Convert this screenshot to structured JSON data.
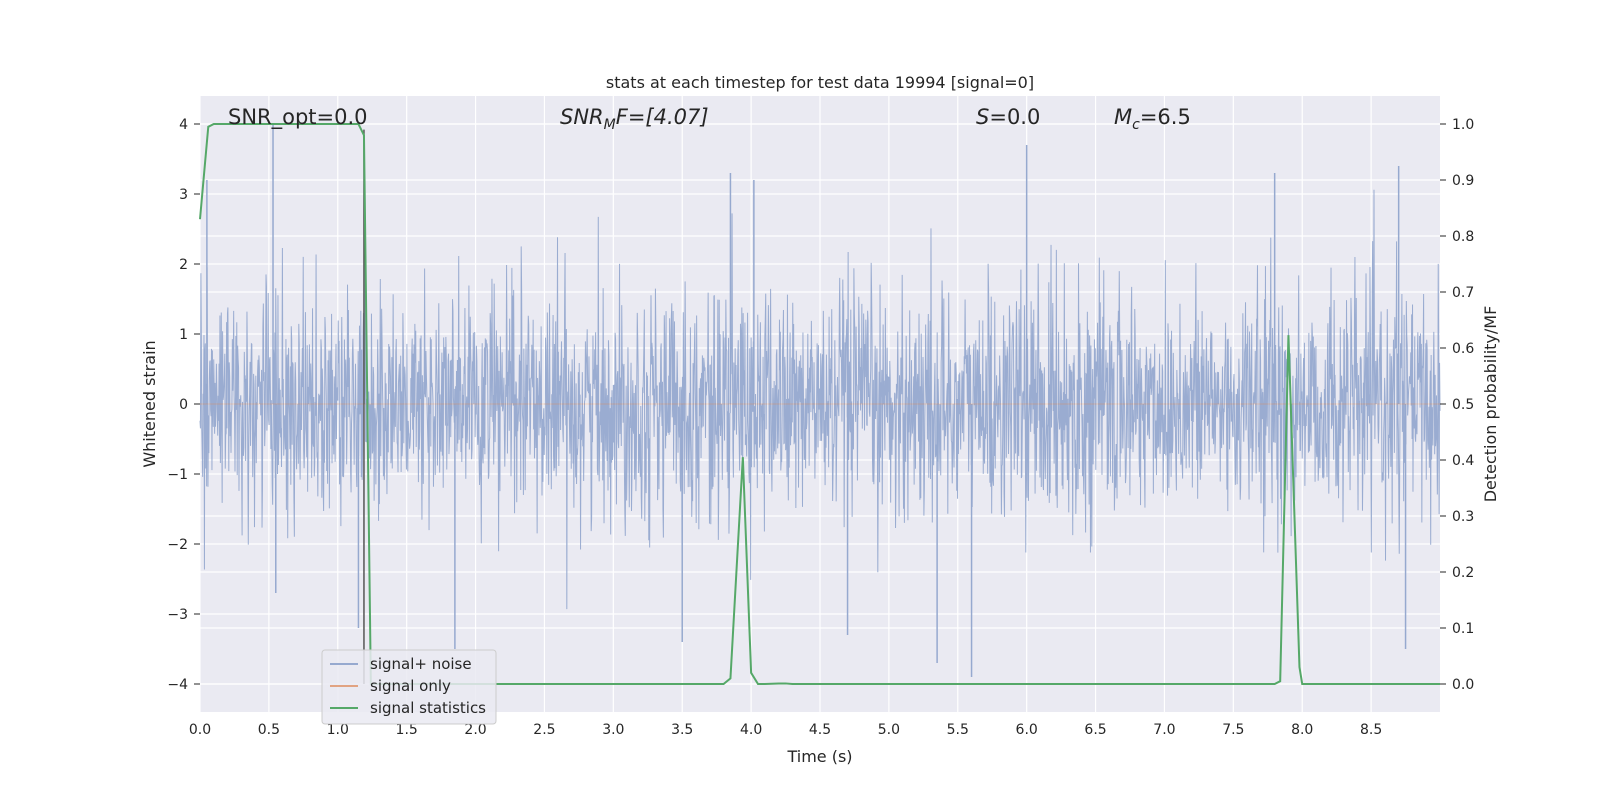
{
  "chart_data": {
    "type": "line",
    "title": "stats at each timestep for test data 19994 [signal=0]",
    "xlabel": "Time (s)",
    "ylabel": "Whitened strain",
    "y2label": "Detection probability/MF",
    "xlim": [
      0.0,
      9.0
    ],
    "ylim": [
      -4.4,
      4.4
    ],
    "y2lim": [
      -0.05,
      1.05
    ],
    "xticks": [
      "0.0",
      "0.5",
      "1.0",
      "1.5",
      "2.0",
      "2.5",
      "3.0",
      "3.5",
      "4.0",
      "4.5",
      "5.0",
      "5.5",
      "6.0",
      "6.5",
      "7.0",
      "7.5",
      "8.0",
      "8.5"
    ],
    "yticks": [
      "−4",
      "−3",
      "−2",
      "−1",
      "0",
      "1",
      "2",
      "3",
      "4"
    ],
    "y2ticks": [
      "0.0",
      "0.1",
      "0.2",
      "0.3",
      "0.4",
      "0.5",
      "0.6",
      "0.7",
      "0.8",
      "0.9",
      "1.0"
    ],
    "grid": true,
    "legend_position": "lower-left",
    "annotations": {
      "snr_opt": "SNR_opt=0.0",
      "snr_mf_main": "SNR",
      "snr_mf_sub": "M",
      "snr_mf_rest": "F=[4.07]",
      "s_sym": "S",
      "s_rest": "=0.0",
      "mc_main": "M",
      "mc_sub": "c",
      "mc_rest": "=6.5"
    },
    "series": [
      {
        "name": "signal+ noise",
        "color": "#96a9cf",
        "kind": "noise",
        "sigma": 0.8,
        "peaks": [
          [
            0.05,
            3.2
          ],
          [
            0.53,
            4.0
          ],
          [
            0.55,
            -2.7
          ],
          [
            3.85,
            3.3
          ],
          [
            4.02,
            3.2
          ],
          [
            5.35,
            -3.7
          ],
          [
            5.6,
            -3.9
          ],
          [
            6.0,
            3.7
          ],
          [
            7.8,
            3.3
          ],
          [
            8.7,
            3.4
          ],
          [
            8.75,
            -3.5
          ],
          [
            1.85,
            -3.5
          ],
          [
            3.5,
            -3.4
          ],
          [
            1.15,
            -3.2
          ],
          [
            4.7,
            -3.3
          ]
        ]
      },
      {
        "name": "signal only",
        "color": "#dd8452",
        "x": [
          0.0,
          9.0
        ],
        "y": [
          0.0,
          0.0
        ]
      },
      {
        "name": "signal statistics",
        "color": "#55a868",
        "axis": "right",
        "x": [
          0.0,
          0.06,
          0.1,
          0.2,
          1.0,
          1.15,
          1.19,
          1.24,
          1.4,
          2.0,
          3.0,
          3.8,
          3.85,
          3.94,
          4.0,
          4.05,
          4.1,
          4.2,
          4.25,
          4.3,
          4.5,
          5.0,
          6.0,
          7.0,
          7.7,
          7.8,
          7.84,
          7.9,
          7.98,
          8.0,
          8.5,
          9.0
        ],
        "y": [
          0.83,
          0.995,
          1.0,
          1.0,
          1.0,
          1.0,
          0.98,
          0.0,
          0.0,
          0.0,
          0.0,
          0.0,
          0.01,
          0.405,
          0.02,
          0.0,
          0.0,
          0.001,
          0.001,
          0.0,
          0.0,
          0.0,
          0.0,
          0.0,
          0.0,
          0.0,
          0.005,
          0.623,
          0.03,
          0.0,
          0.0,
          0.0
        ]
      }
    ],
    "extra_marks": {
      "vertical_line_x": 1.19,
      "vertical_line_color": "#555555"
    }
  }
}
